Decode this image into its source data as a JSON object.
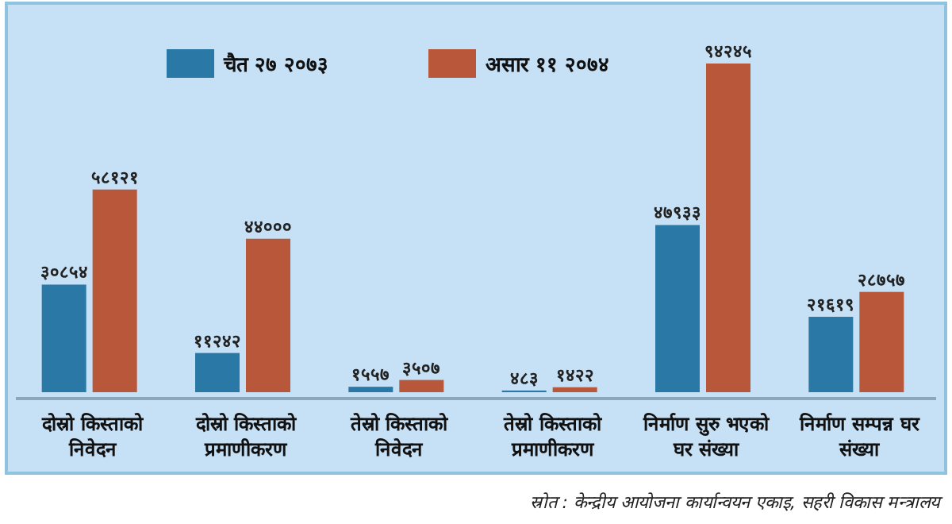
{
  "chart_data": {
    "type": "bar",
    "categories": [
      "दोस्रो किस्ताको निवेदन",
      "दोस्रो किस्ताको प्रमाणीकरण",
      "तेस्रो किस्ताको निवेदन",
      "तेस्रो किस्ताको प्रमाणीकरण",
      "निर्माण सुरु भएको घर संख्या",
      "निर्माण सम्पन्न घर संख्या"
    ],
    "series": [
      {
        "name": "चैत २७ २०७३",
        "color": "#2a78a6",
        "values": [
          30854,
          11242,
          1557,
          483,
          47933,
          21619
        ],
        "value_labels": [
          "३०८५४",
          "११२४२",
          "१५५७",
          "४८३",
          "४७९३३",
          "२१६१९"
        ]
      },
      {
        "name": "असार ११ २०७४",
        "color": "#b8573a",
        "values": [
          58121,
          44000,
          3507,
          1422,
          94245,
          28757
        ],
        "value_labels": [
          "५८१२१",
          "४४०००",
          "३५०७",
          "१४२२",
          "९४२४५",
          "२८७५७"
        ]
      }
    ],
    "legend": "top",
    "annotations": [
      "स्रोत : केन्द्रीय आयोजना कार्यान्वयन एकाइ, सहरी विकास मन्त्रालय"
    ]
  }
}
